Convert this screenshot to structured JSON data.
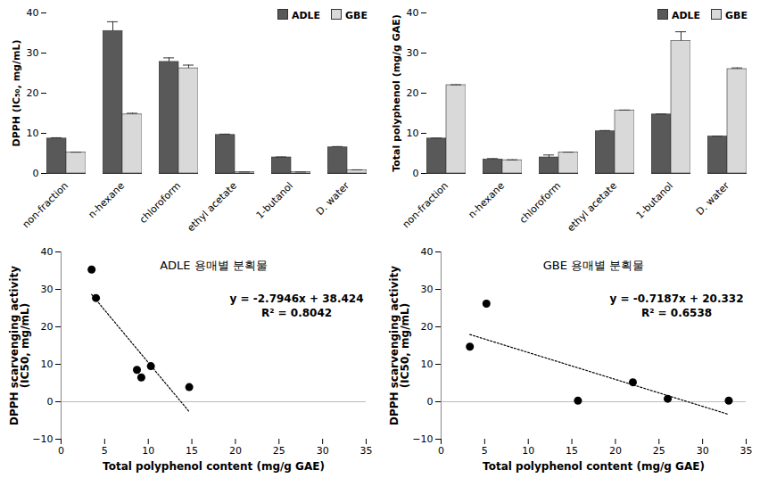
{
  "chart_data": [
    {
      "type": "bar",
      "ylabel": "DPPH (IC₅₀, mg/mL)",
      "categories": [
        "non-fraction",
        "n-hexane",
        "chloroform",
        "ethyl acetate",
        "1-butanol",
        "D. water"
      ],
      "series": [
        {
          "name": "ADLE",
          "color": "#595959",
          "values": [
            8.7,
            35.5,
            27.8,
            9.6,
            4.0,
            6.5
          ],
          "errors": [
            0.2,
            2.3,
            1.0,
            0.2,
            0.1,
            0.2
          ]
        },
        {
          "name": "GBE",
          "color": "#d9d9d9",
          "values": [
            5.2,
            14.7,
            26.2,
            0.3,
            0.3,
            0.8
          ],
          "errors": [
            0.1,
            0.3,
            0.8,
            0.05,
            0.05,
            0.1
          ]
        }
      ],
      "ylim": [
        0,
        40
      ],
      "yticks": [
        0,
        10,
        20,
        30,
        40
      ],
      "legend": "top-right"
    },
    {
      "type": "bar",
      "ylabel": "Total polyphenol (mg/g GAE)",
      "categories": [
        "non-fraction",
        "n-hexane",
        "chloroform",
        "ethyl acetate",
        "1-butanol",
        "D. water"
      ],
      "series": [
        {
          "name": "ADLE",
          "color": "#595959",
          "values": [
            8.7,
            3.5,
            4.0,
            10.5,
            14.7,
            9.2
          ],
          "errors": [
            0.1,
            0.2,
            0.6,
            0.2,
            0.1,
            0.1
          ]
        },
        {
          "name": "GBE",
          "color": "#d9d9d9",
          "values": [
            22.0,
            3.3,
            5.2,
            15.7,
            33.0,
            26.0
          ],
          "errors": [
            0.1,
            0.1,
            0.1,
            0.1,
            2.3,
            0.3
          ]
        }
      ],
      "ylim": [
        0,
        40
      ],
      "yticks": [
        0,
        10,
        20,
        30,
        40
      ],
      "legend": "top-right"
    },
    {
      "type": "scatter",
      "title": "ADLE 용매별 분획물",
      "xlabel": "Total polyphenol content (mg/g GAE)",
      "ylabel": "DPPH scarvenging activity (IC50, mg/mL)",
      "x": [
        3.5,
        4.0,
        8.7,
        9.2,
        10.3,
        14.7
      ],
      "values": [
        35.3,
        27.7,
        8.5,
        6.5,
        9.5,
        3.9
      ],
      "color": "#000000",
      "trendline": {
        "slope": -2.7946,
        "intercept": 38.424,
        "line_style": "dotted"
      },
      "annotations": [
        "y = -2.7946x + 38.424",
        "R² = 0.8042"
      ],
      "xlim": [
        0,
        35
      ],
      "xticks": [
        0,
        5,
        10,
        15,
        20,
        25,
        30,
        35
      ],
      "ylim": [
        -10,
        40
      ],
      "yticks": [
        -10,
        0,
        10,
        20,
        30,
        40
      ]
    },
    {
      "type": "scatter",
      "title": "GBE 용매별 분획물",
      "xlabel": "Total polyphenol content (mg/g GAE)",
      "ylabel": "DPPH scarvenging activity (IC50, mg/mL)",
      "x": [
        3.3,
        5.2,
        15.7,
        22.0,
        26.0,
        33.0
      ],
      "values": [
        14.7,
        26.2,
        0.3,
        5.2,
        0.8,
        0.3
      ],
      "color": "#000000",
      "trendline": {
        "slope": -0.7187,
        "intercept": 20.332,
        "line_style": "dotted"
      },
      "annotations": [
        "y = -0.7187x + 20.332",
        "R² = 0.6538"
      ],
      "xlim": [
        0,
        35
      ],
      "xticks": [
        0,
        5,
        10,
        15,
        20,
        25,
        30,
        35
      ],
      "ylim": [
        -10,
        40
      ],
      "yticks": [
        -10,
        0,
        10,
        20,
        30,
        40
      ]
    }
  ]
}
